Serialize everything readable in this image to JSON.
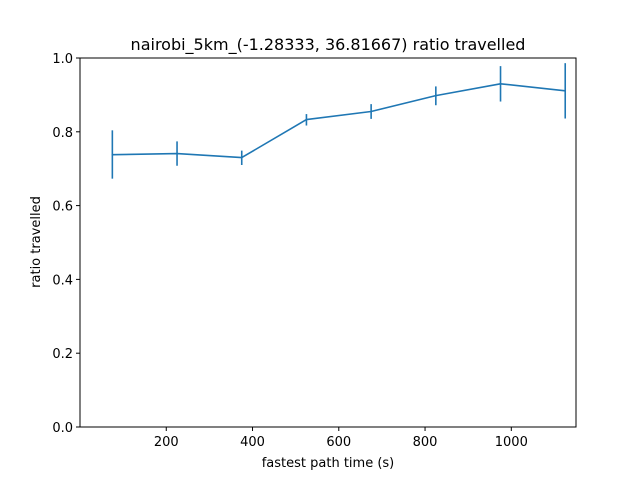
{
  "chart_data": {
    "type": "line",
    "title": "nairobi_5km_(-1.28333, 36.81667) ratio travelled",
    "xlabel": "fastest path time (s)",
    "ylabel": "ratio travelled",
    "xlim": [
      0,
      1150
    ],
    "ylim": [
      0.0,
      1.0
    ],
    "x_ticks": [
      200,
      400,
      600,
      800,
      1000
    ],
    "y_ticks": [
      0.0,
      0.2,
      0.4,
      0.6,
      0.8,
      1.0
    ],
    "x_tick_labels": [
      "200",
      "400",
      "600",
      "800",
      "1000"
    ],
    "y_tick_labels": [
      "0.0",
      "0.2",
      "0.4",
      "0.6",
      "0.8",
      "1.0"
    ],
    "grid": false,
    "series": [
      {
        "color": "#1f77b4",
        "x": [
          75,
          225,
          375,
          525,
          675,
          825,
          975,
          1125
        ],
        "y": [
          0.738,
          0.741,
          0.73,
          0.833,
          0.855,
          0.898,
          0.93,
          0.911
        ],
        "err_low": [
          0.673,
          0.708,
          0.71,
          0.817,
          0.835,
          0.872,
          0.882,
          0.836
        ],
        "err_high": [
          0.804,
          0.774,
          0.749,
          0.848,
          0.875,
          0.923,
          0.978,
          0.986
        ]
      }
    ]
  }
}
